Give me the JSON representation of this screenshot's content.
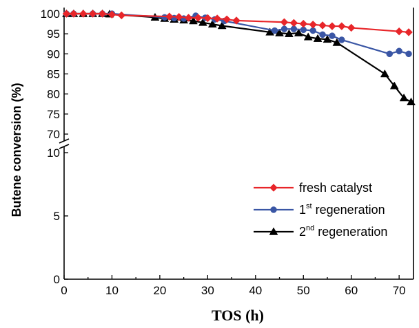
{
  "chart_data": {
    "type": "line",
    "title": "",
    "xlabel": "TOS (h)",
    "ylabel": "Butene conversion (%)",
    "xlim": [
      0,
      73
    ],
    "x_ticks": [
      "0",
      "10",
      "20",
      "30",
      "40",
      "50",
      "60",
      "70"
    ],
    "y_axis_break": {
      "lower_range": [
        0,
        10
      ],
      "upper_range": [
        68,
        100
      ]
    },
    "y_ticks_lower": [
      "0",
      "5",
      "10"
    ],
    "y_ticks_upper": [
      "70",
      "75",
      "80",
      "85",
      "90",
      "95",
      "100"
    ],
    "grid": false,
    "legend_position": "lower-right",
    "series": [
      {
        "name": "fresh catalyst",
        "color": "#e8262a",
        "marker": "diamond",
        "x": [
          0.5,
          2,
          4,
          6,
          8,
          10,
          12,
          22,
          24,
          26,
          28,
          30,
          32,
          34,
          36,
          46,
          48,
          50,
          52,
          54,
          56,
          58,
          60,
          70,
          72
        ],
        "y": [
          100,
          100,
          100,
          100,
          100,
          99.8,
          99.6,
          99.3,
          99.2,
          99.0,
          99.0,
          98.9,
          98.8,
          98.6,
          98.3,
          97.9,
          97.7,
          97.5,
          97.3,
          97.1,
          96.9,
          96.9,
          96.5,
          95.6,
          95.4
        ]
      },
      {
        "name": "1st regeneration",
        "color": "#3a56a5",
        "marker": "circle",
        "x": [
          0.5,
          2,
          6,
          8,
          10,
          21,
          23,
          25,
          27.5,
          29.5,
          31.5,
          33.5,
          44,
          46,
          48,
          50,
          52,
          54,
          56,
          58,
          68,
          70,
          72
        ],
        "y": [
          100,
          100,
          100,
          100,
          100,
          99.1,
          98.9,
          98.8,
          99.5,
          99.0,
          98.6,
          98.2,
          95.8,
          96.2,
          96.2,
          96.0,
          95.8,
          94.8,
          94.5,
          93.5,
          90.0,
          90.7,
          90.0
        ]
      },
      {
        "name": "2nd regeneration",
        "color": "#000000",
        "marker": "triangle",
        "x": [
          0.5,
          2,
          4,
          6,
          8,
          9.5,
          19,
          21,
          23,
          25,
          27,
          29,
          31,
          33,
          43,
          45,
          47,
          49,
          51,
          53,
          55,
          57,
          67,
          69,
          71,
          72.5
        ],
        "y": [
          100,
          100,
          100,
          100,
          100,
          99.9,
          99.1,
          98.8,
          98.6,
          98.4,
          98.2,
          97.8,
          97.4,
          97.0,
          95.4,
          95.2,
          95.0,
          95.2,
          94.2,
          93.8,
          93.6,
          92.8,
          85.0,
          82.0,
          79.0,
          78.0
        ]
      }
    ]
  },
  "legend": {
    "items": [
      {
        "base": "fresh catalyst",
        "sup": "",
        "rest": ""
      },
      {
        "base": "1",
        "sup": "st",
        "rest": " regeneration"
      },
      {
        "base": "2",
        "sup": "nd",
        "rest": " regeneration"
      }
    ]
  }
}
